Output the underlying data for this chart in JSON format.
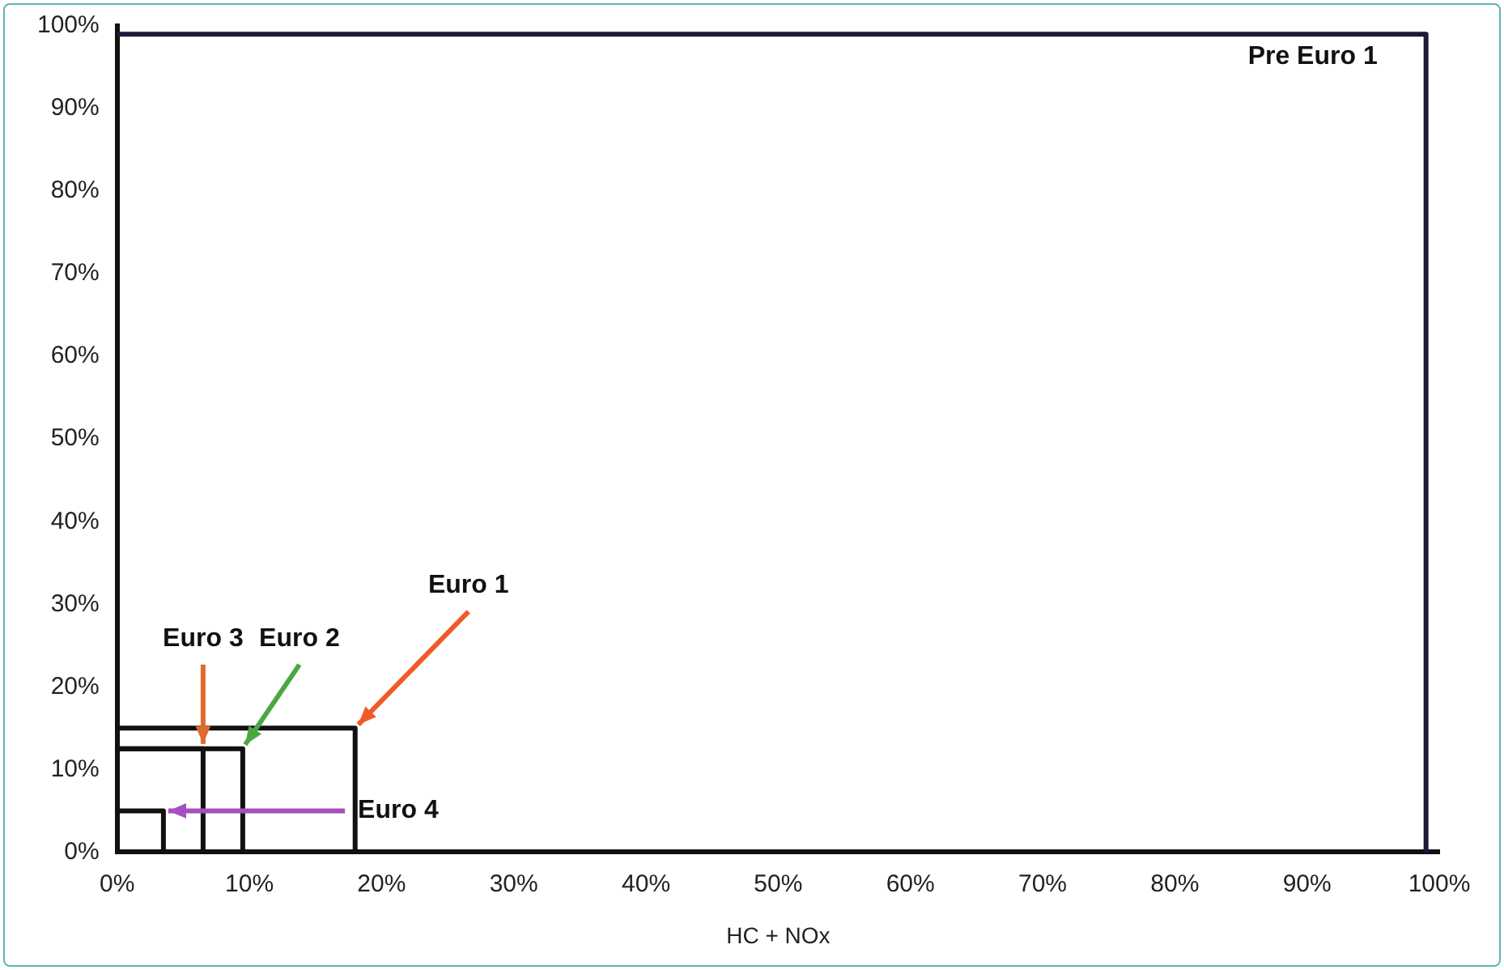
{
  "chart_data": {
    "type": "line",
    "xlabel": "HC + NOx",
    "xlim": [
      0,
      100
    ],
    "ylim": [
      0,
      100
    ],
    "xticks": [
      {
        "value": 0,
        "label": "0%"
      },
      {
        "value": 10,
        "label": "10%"
      },
      {
        "value": 20,
        "label": "20%"
      },
      {
        "value": 30,
        "label": "30%"
      },
      {
        "value": 40,
        "label": "40%"
      },
      {
        "value": 50,
        "label": "50%"
      },
      {
        "value": 60,
        "label": "60%"
      },
      {
        "value": 70,
        "label": "70%"
      },
      {
        "value": 80,
        "label": "80%"
      },
      {
        "value": 90,
        "label": "90%"
      },
      {
        "value": 100,
        "label": "100%"
      }
    ],
    "yticks": [
      {
        "value": 0,
        "label": "0%"
      },
      {
        "value": 10,
        "label": "10%"
      },
      {
        "value": 20,
        "label": "20%"
      },
      {
        "value": 30,
        "label": "30%"
      },
      {
        "value": 40,
        "label": "40%"
      },
      {
        "value": 50,
        "label": "50%"
      },
      {
        "value": 60,
        "label": "60%"
      },
      {
        "value": 70,
        "label": "70%"
      },
      {
        "value": 80,
        "label": "80%"
      },
      {
        "value": 90,
        "label": "90%"
      },
      {
        "value": 100,
        "label": "100%"
      }
    ],
    "series": [
      {
        "color": "#1a1a3a",
        "x": [
          0,
          99,
          99
        ],
        "values": [
          99,
          99,
          0
        ]
      },
      {
        "color": "#111111",
        "x": [
          0,
          18,
          18
        ],
        "values": [
          15,
          15,
          0
        ]
      },
      {
        "color": "#111111",
        "x": [
          0,
          9.5,
          9.5
        ],
        "values": [
          12.5,
          12.5,
          0
        ]
      },
      {
        "color": "#111111",
        "x": [
          0,
          6.5,
          6.5
        ],
        "values": [
          12.5,
          12.5,
          0
        ]
      },
      {
        "color": "#111111",
        "x": [
          0,
          3.5,
          3.5
        ],
        "values": [
          5,
          5,
          0
        ]
      }
    ],
    "annotations": [
      {
        "text": "Pre Euro 1",
        "x": 99,
        "y": 99
      },
      {
        "text": "Euro 1",
        "x": 18,
        "y": 15
      },
      {
        "text": "Euro 2",
        "x": 9.5,
        "y": 12.5
      },
      {
        "text": "Euro 3",
        "x": 6.5,
        "y": 12.5
      },
      {
        "text": "Euro 4",
        "x": 3.5,
        "y": 5
      }
    ],
    "grid": false,
    "legend": false
  }
}
